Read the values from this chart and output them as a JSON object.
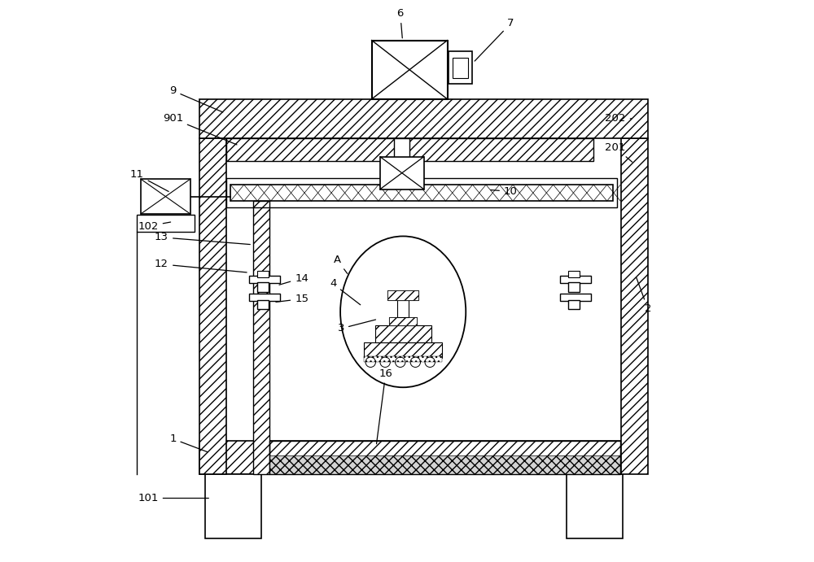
{
  "bg_color": "#ffffff",
  "line_color": "#000000",
  "figsize": [
    10.0,
    6.91
  ],
  "dpi": 100
}
